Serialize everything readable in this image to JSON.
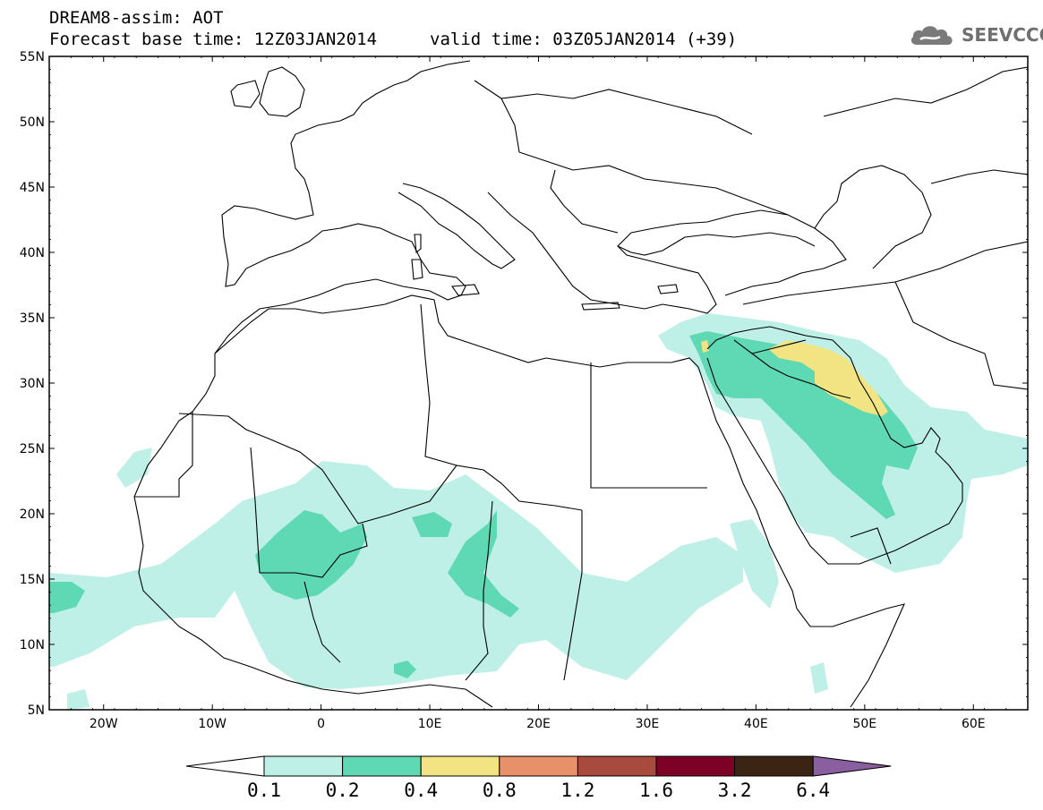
{
  "header": {
    "model_title": "DREAM8-assim: AOT",
    "base_time": "Forecast base time: 12Z03JAN2014",
    "valid_time": "valid time: 03Z05JAN2014 (+39)",
    "logo_text": "SEEVCCC"
  },
  "map": {
    "type": "map",
    "projection": "lat-lon",
    "lon_range": [
      -25,
      65
    ],
    "lat_range": [
      5,
      55
    ],
    "lat_ticks": [
      "55N",
      "50N",
      "45N",
      "40N",
      "35N",
      "30N",
      "25N",
      "20N",
      "15N",
      "10N",
      "5N"
    ],
    "lon_ticks": [
      "20W",
      "10W",
      "0",
      "10E",
      "20E",
      "30E",
      "40E",
      "50E",
      "60E"
    ],
    "colors": {
      "c01": "#bff0e8",
      "c02": "#5ed9b3",
      "c04": "#f2e482",
      "c08": "#e8906a",
      "c12": "#a84a3e",
      "c16": "#7d0026",
      "c32": "#3c2414",
      "c64": "#8a5fa0"
    }
  },
  "colorbar": {
    "labels": [
      "0.1",
      "0.2",
      "0.4",
      "0.8",
      "1.2",
      "1.6",
      "3.2",
      "6.4"
    ]
  }
}
